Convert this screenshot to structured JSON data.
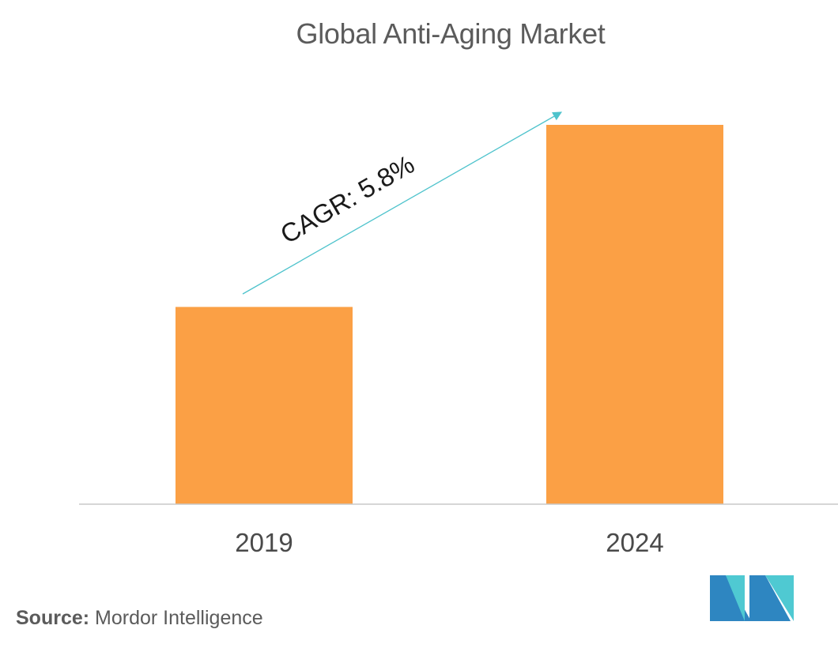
{
  "chart_data": {
    "type": "bar",
    "title": "Global Anti-Aging Market",
    "categories": [
      "2019",
      "2024"
    ],
    "values": [
      52,
      100
    ],
    "ylim": [
      0,
      100
    ],
    "xlabel": "",
    "ylabel": "",
    "grid": false,
    "legend": "none",
    "bar_color": "#fba045",
    "annotation": {
      "text": "CAGR: 5.8%",
      "arrow_color": "#4ec3cc",
      "from_category": "2019",
      "to_category": "2024"
    }
  },
  "source": {
    "label": "Source:",
    "text": "Mordor Intelligence"
  },
  "logo": {
    "icon": "mordor-intelligence-logo",
    "colors": [
      "#2e86c1",
      "#4fc9d2"
    ]
  }
}
